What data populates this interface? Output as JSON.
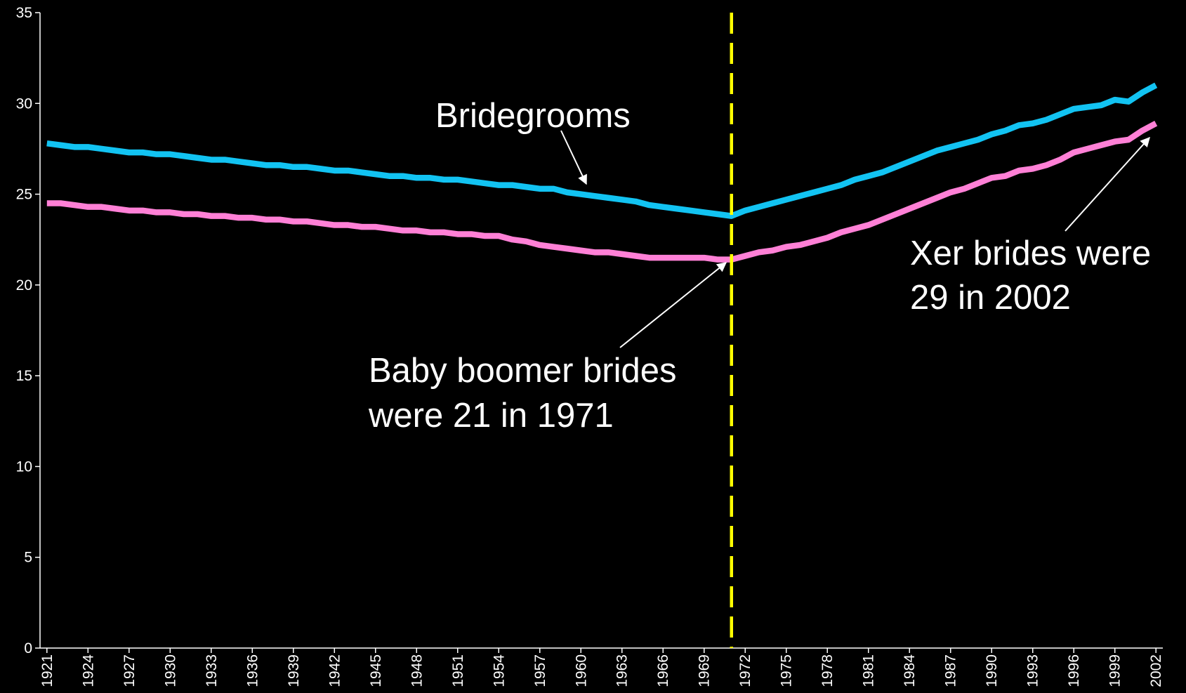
{
  "chart_data": {
    "type": "line",
    "x": [
      1921,
      1922,
      1923,
      1924,
      1925,
      1926,
      1927,
      1928,
      1929,
      1930,
      1931,
      1932,
      1933,
      1934,
      1935,
      1936,
      1937,
      1938,
      1939,
      1940,
      1941,
      1942,
      1943,
      1944,
      1945,
      1946,
      1947,
      1948,
      1949,
      1950,
      1951,
      1952,
      1953,
      1954,
      1955,
      1956,
      1957,
      1958,
      1959,
      1960,
      1961,
      1962,
      1963,
      1964,
      1965,
      1966,
      1967,
      1968,
      1969,
      1970,
      1971,
      1972,
      1973,
      1974,
      1975,
      1976,
      1977,
      1978,
      1979,
      1980,
      1981,
      1982,
      1983,
      1984,
      1985,
      1986,
      1987,
      1988,
      1989,
      1990,
      1991,
      1992,
      1993,
      1994,
      1995,
      1996,
      1997,
      1998,
      1999,
      2000,
      2001,
      2002
    ],
    "series": [
      {
        "name": "Bridegrooms",
        "color": "#12c3f2",
        "values": [
          27.8,
          27.7,
          27.6,
          27.6,
          27.5,
          27.4,
          27.3,
          27.3,
          27.2,
          27.2,
          27.1,
          27.0,
          26.9,
          26.9,
          26.8,
          26.7,
          26.6,
          26.6,
          26.5,
          26.5,
          26.4,
          26.3,
          26.3,
          26.2,
          26.1,
          26.0,
          26.0,
          25.9,
          25.9,
          25.8,
          25.8,
          25.7,
          25.6,
          25.5,
          25.5,
          25.4,
          25.3,
          25.3,
          25.1,
          25.0,
          24.9,
          24.8,
          24.7,
          24.6,
          24.4,
          24.3,
          24.2,
          24.1,
          24.0,
          23.9,
          23.8,
          24.1,
          24.3,
          24.5,
          24.7,
          24.9,
          25.1,
          25.3,
          25.5,
          25.8,
          26.0,
          26.2,
          26.5,
          26.8,
          27.1,
          27.4,
          27.6,
          27.8,
          28.0,
          28.3,
          28.5,
          28.8,
          28.9,
          29.1,
          29.4,
          29.7,
          29.8,
          29.9,
          30.2,
          30.1,
          30.6,
          31.0
        ]
      },
      {
        "color": "#ff80d6",
        "values": [
          24.5,
          24.5,
          24.4,
          24.3,
          24.3,
          24.2,
          24.1,
          24.1,
          24.0,
          24.0,
          23.9,
          23.9,
          23.8,
          23.8,
          23.7,
          23.7,
          23.6,
          23.6,
          23.5,
          23.5,
          23.4,
          23.3,
          23.3,
          23.2,
          23.2,
          23.1,
          23.0,
          23.0,
          22.9,
          22.9,
          22.8,
          22.8,
          22.7,
          22.7,
          22.5,
          22.4,
          22.2,
          22.1,
          22.0,
          21.9,
          21.8,
          21.8,
          21.7,
          21.6,
          21.5,
          21.5,
          21.5,
          21.5,
          21.5,
          21.4,
          21.4,
          21.6,
          21.8,
          21.9,
          22.1,
          22.2,
          22.4,
          22.6,
          22.9,
          23.1,
          23.3,
          23.6,
          23.9,
          24.2,
          24.5,
          24.8,
          25.1,
          25.3,
          25.6,
          25.9,
          26.0,
          26.3,
          26.4,
          26.6,
          26.9,
          27.3,
          27.5,
          27.7,
          27.9,
          28.0,
          28.5,
          28.9
        ]
      }
    ],
    "xlim": [
      1921,
      2002
    ],
    "xticks": [
      1921,
      1924,
      1927,
      1930,
      1933,
      1936,
      1939,
      1942,
      1945,
      1948,
      1951,
      1954,
      1957,
      1960,
      1963,
      1966,
      1969,
      1972,
      1975,
      1978,
      1981,
      1984,
      1987,
      1990,
      1993,
      1996,
      1999,
      2002
    ],
    "ylim": [
      0,
      35
    ],
    "yticks": [
      0,
      5,
      10,
      15,
      20,
      25,
      30,
      35
    ],
    "grid": false,
    "reference_line": {
      "x": 1971,
      "color": "#ffff00"
    },
    "annotations": [
      {
        "lines": [
          "Baby boomer brides",
          "were 21 in 1971"
        ]
      },
      {
        "lines": [
          "Xer brides were",
          "29 in 2002"
        ]
      }
    ]
  }
}
